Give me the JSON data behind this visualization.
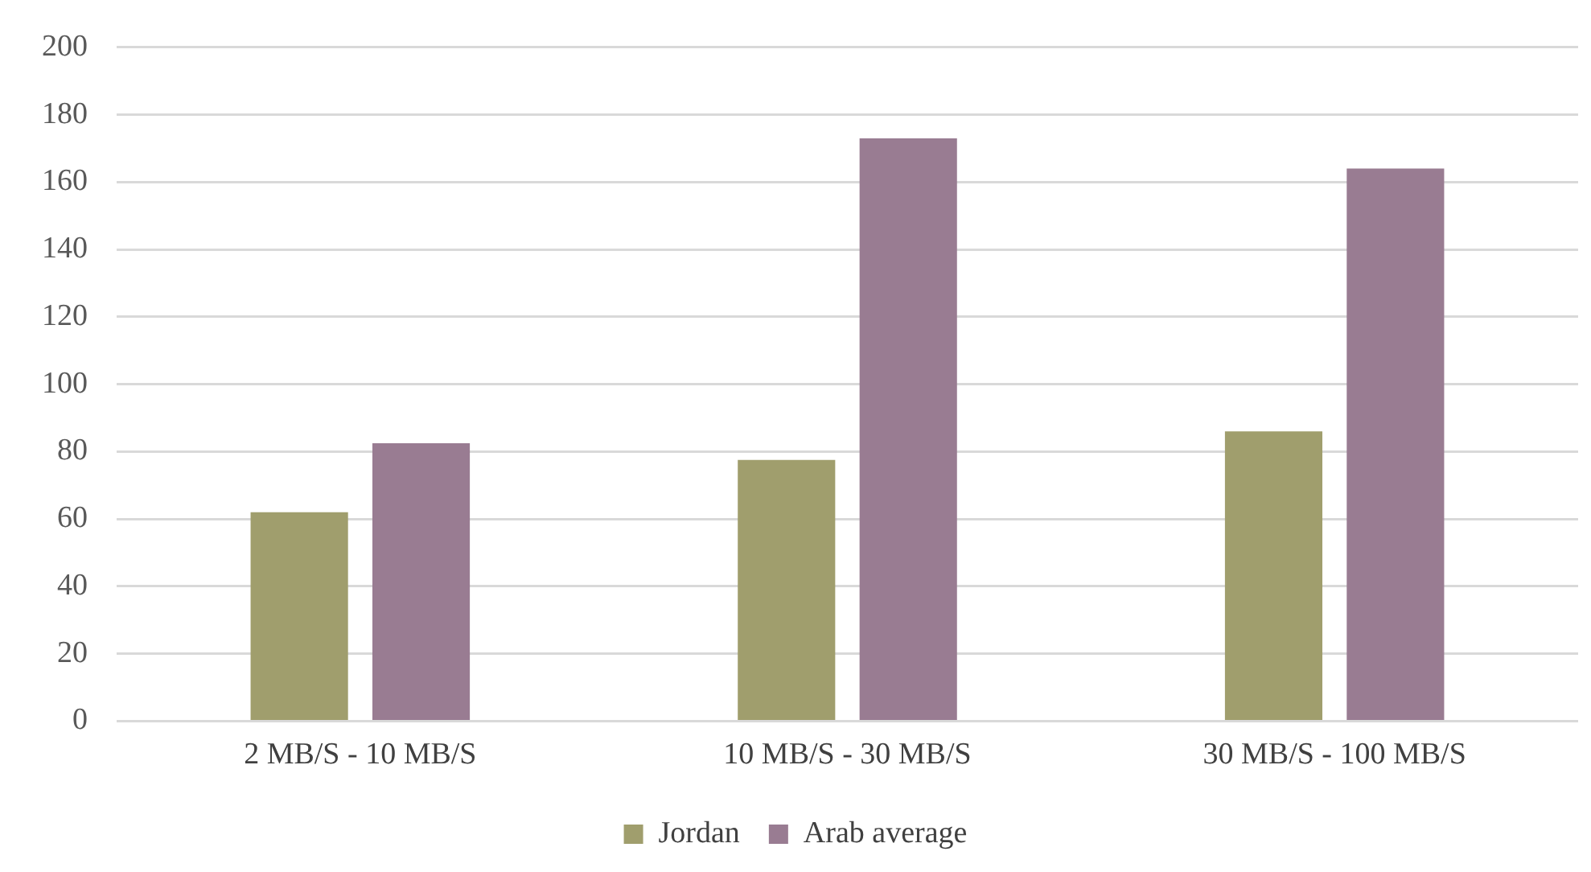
{
  "chart_data": {
    "type": "bar",
    "categories": [
      "2 MB/S - 10 MB/S",
      "10 MB/S - 30 MB/S",
      "30 MB/S - 100 MB/S"
    ],
    "series": [
      {
        "name": "Jordan",
        "color": "#a09e6d",
        "values": [
          62,
          77.5,
          86
        ]
      },
      {
        "name": "Arab average",
        "color": "#997c92",
        "values": [
          82.5,
          173,
          164
        ]
      }
    ],
    "ylim": [
      0,
      200
    ],
    "yticks": [
      0,
      20,
      40,
      60,
      80,
      100,
      120,
      140,
      160,
      180,
      200
    ],
    "grid": "y",
    "legend": "bottom"
  }
}
